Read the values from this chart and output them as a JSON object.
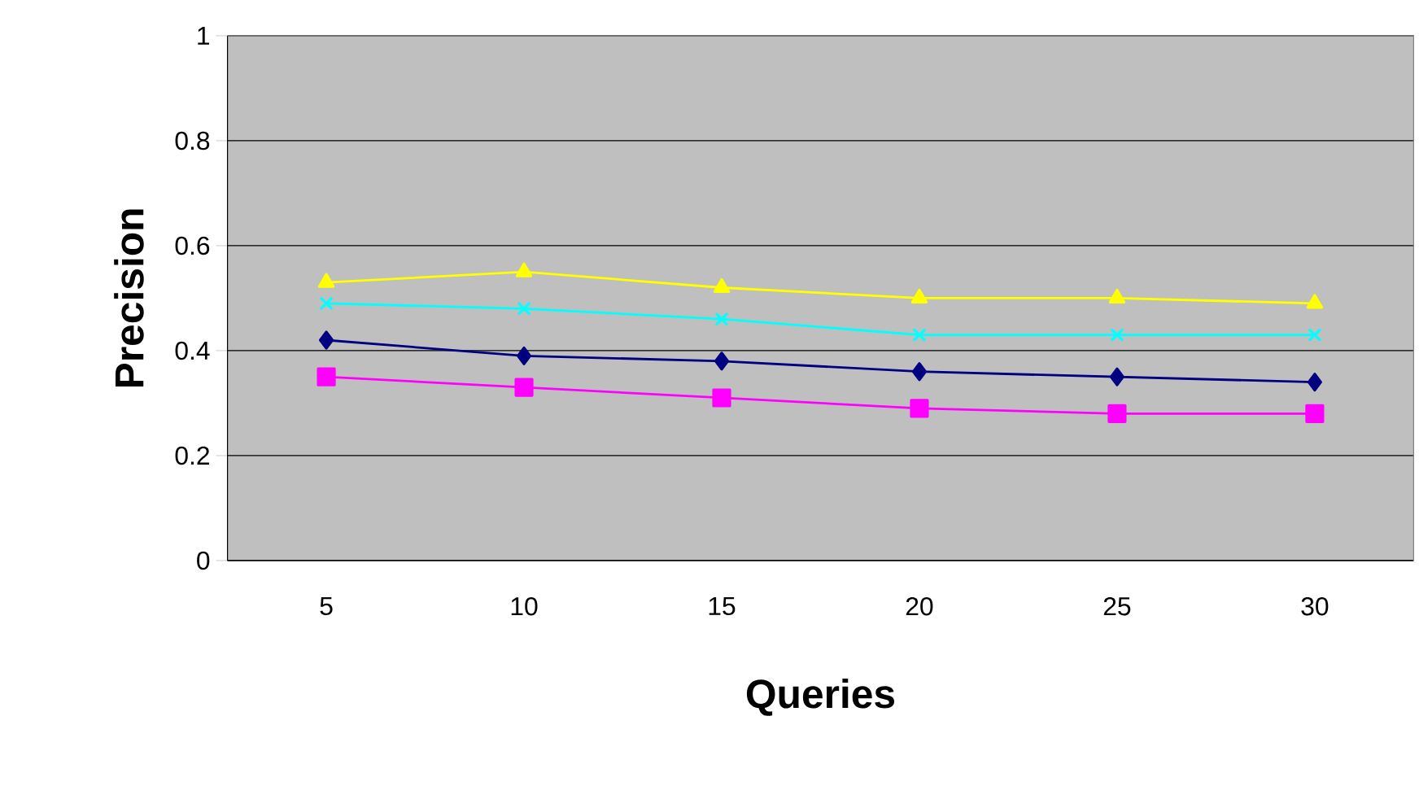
{
  "chart_data": {
    "type": "line",
    "xlabel": "Queries",
    "ylabel": "Precision",
    "categories": [
      "5",
      "10",
      "15",
      "20",
      "25",
      "30"
    ],
    "series": [
      {
        "color": "#ffff00",
        "marker": "triangle",
        "values": [
          0.53,
          0.55,
          0.52,
          0.5,
          0.5,
          0.49
        ]
      },
      {
        "color": "#00ffff",
        "marker": "cross",
        "values": [
          0.49,
          0.48,
          0.46,
          0.43,
          0.43,
          0.43
        ]
      },
      {
        "color": "#000080",
        "marker": "diamond",
        "values": [
          0.42,
          0.39,
          0.38,
          0.36,
          0.35,
          0.34
        ]
      },
      {
        "color": "#ff00ff",
        "marker": "square",
        "values": [
          0.35,
          0.33,
          0.31,
          0.29,
          0.28,
          0.28
        ]
      }
    ],
    "ylim": [
      0,
      1
    ],
    "yticks": [
      0,
      0.2,
      0.4,
      0.6,
      0.8,
      1
    ],
    "grid": "y"
  }
}
